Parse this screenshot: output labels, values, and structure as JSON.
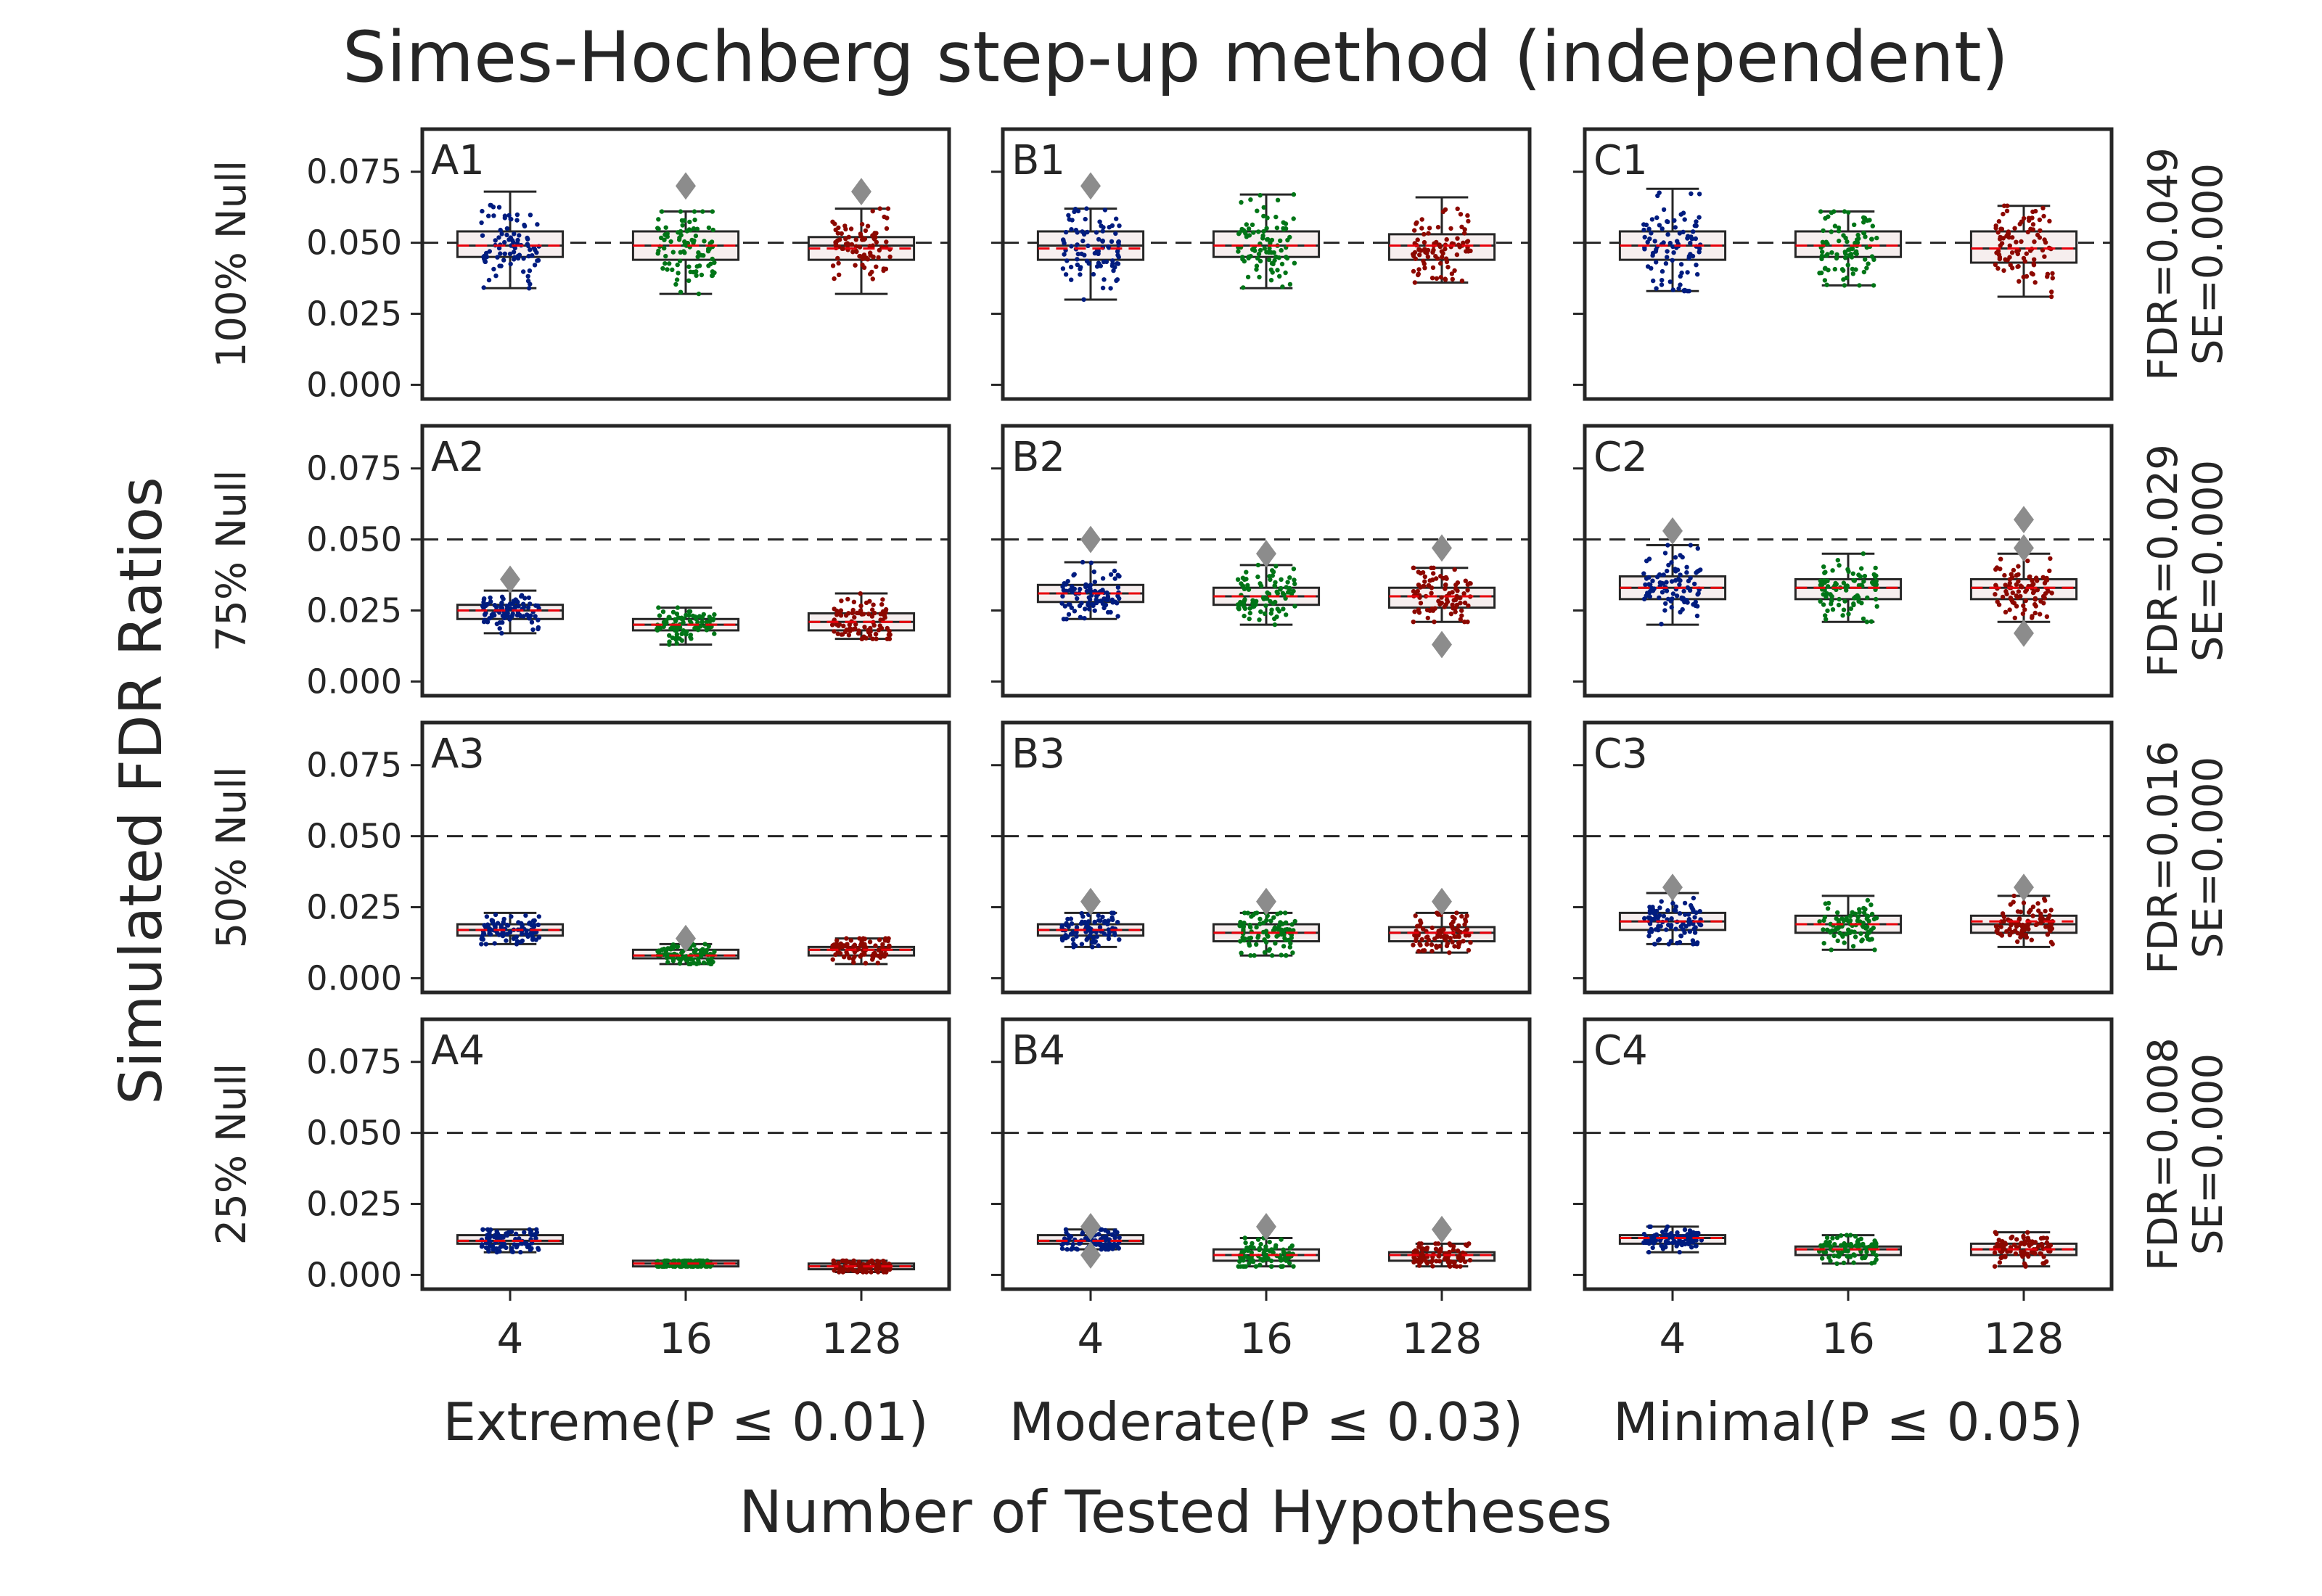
{
  "chart_data": {
    "type": "box",
    "title": "Simes-Hochberg step-up method (independent)",
    "xlabel": "Number of Tested Hypotheses",
    "ylabel": "Simulated FDR Ratios",
    "ylim": [
      -0.005,
      0.09
    ],
    "yticks": [
      "0.000",
      "0.025",
      "0.050",
      "0.075"
    ],
    "ytick_values": [
      0,
      0.025,
      0.05,
      0.075
    ],
    "reference_line": 0.05,
    "categories": [
      "4",
      "16",
      "128"
    ],
    "columns": [
      "Extreme(P ≤ 0.01)",
      "Moderate(P ≤ 0.03)",
      "Minimal(P ≤ 0.05)"
    ],
    "rows": [
      "100% Null",
      "75% Null",
      "50% Null",
      "25% Null"
    ],
    "row_annotations": [
      {
        "fdr": "FDR=0.049",
        "se": "SE=0.000"
      },
      {
        "fdr": "FDR=0.029",
        "se": "SE=0.000"
      },
      {
        "fdr": "FDR=0.016",
        "se": "SE=0.000"
      },
      {
        "fdr": "FDR=0.008",
        "se": "SE=0.000"
      }
    ],
    "colors": {
      "points": [
        "#001c7f",
        "#017517",
        "#8c0800"
      ],
      "mean_line": "#e8000b",
      "box_fill": "#f6eeee",
      "outlier": "#8c8c8c",
      "reference": "#262626",
      "frame": "#262626"
    },
    "grid": false,
    "panels": [
      {
        "label": "A1",
        "row": 0,
        "col": 0,
        "boxes": [
          {
            "category": "4",
            "whislo": 0.034,
            "q1": 0.045,
            "median": 0.049,
            "q3": 0.054,
            "whishi": 0.068,
            "mean": 0.049,
            "outliers": []
          },
          {
            "category": "16",
            "whislo": 0.032,
            "q1": 0.044,
            "median": 0.049,
            "q3": 0.054,
            "whishi": 0.061,
            "mean": 0.049,
            "outliers": [
              0.07
            ]
          },
          {
            "category": "128",
            "whislo": 0.032,
            "q1": 0.044,
            "median": 0.049,
            "q3": 0.052,
            "whishi": 0.062,
            "mean": 0.048,
            "outliers": [
              0.068
            ]
          }
        ]
      },
      {
        "label": "B1",
        "row": 0,
        "col": 1,
        "boxes": [
          {
            "category": "4",
            "whislo": 0.03,
            "q1": 0.044,
            "median": 0.049,
            "q3": 0.054,
            "whishi": 0.062,
            "mean": 0.048,
            "outliers": [
              0.07
            ]
          },
          {
            "category": "16",
            "whislo": 0.034,
            "q1": 0.045,
            "median": 0.049,
            "q3": 0.054,
            "whishi": 0.067,
            "mean": 0.049,
            "outliers": []
          },
          {
            "category": "128",
            "whislo": 0.036,
            "q1": 0.044,
            "median": 0.049,
            "q3": 0.053,
            "whishi": 0.066,
            "mean": 0.049,
            "outliers": []
          }
        ]
      },
      {
        "label": "C1",
        "row": 0,
        "col": 2,
        "boxes": [
          {
            "category": "4",
            "whislo": 0.033,
            "q1": 0.044,
            "median": 0.049,
            "q3": 0.054,
            "whishi": 0.069,
            "mean": 0.049,
            "outliers": []
          },
          {
            "category": "16",
            "whislo": 0.035,
            "q1": 0.045,
            "median": 0.049,
            "q3": 0.054,
            "whishi": 0.061,
            "mean": 0.049,
            "outliers": []
          },
          {
            "category": "128",
            "whislo": 0.031,
            "q1": 0.043,
            "median": 0.048,
            "q3": 0.054,
            "whishi": 0.063,
            "mean": 0.048,
            "outliers": []
          }
        ]
      },
      {
        "label": "A2",
        "row": 1,
        "col": 0,
        "boxes": [
          {
            "category": "4",
            "whislo": 0.017,
            "q1": 0.022,
            "median": 0.025,
            "q3": 0.027,
            "whishi": 0.032,
            "mean": 0.025,
            "outliers": [
              0.036
            ]
          },
          {
            "category": "16",
            "whislo": 0.013,
            "q1": 0.018,
            "median": 0.02,
            "q3": 0.022,
            "whishi": 0.026,
            "mean": 0.02,
            "outliers": []
          },
          {
            "category": "128",
            "whislo": 0.015,
            "q1": 0.018,
            "median": 0.021,
            "q3": 0.024,
            "whishi": 0.031,
            "mean": 0.021,
            "outliers": []
          }
        ]
      },
      {
        "label": "B2",
        "row": 1,
        "col": 1,
        "boxes": [
          {
            "category": "4",
            "whislo": 0.022,
            "q1": 0.028,
            "median": 0.031,
            "q3": 0.034,
            "whishi": 0.042,
            "mean": 0.031,
            "outliers": [
              0.05
            ]
          },
          {
            "category": "16",
            "whislo": 0.02,
            "q1": 0.027,
            "median": 0.03,
            "q3": 0.033,
            "whishi": 0.041,
            "mean": 0.03,
            "outliers": [
              0.045
            ]
          },
          {
            "category": "128",
            "whislo": 0.021,
            "q1": 0.026,
            "median": 0.03,
            "q3": 0.033,
            "whishi": 0.04,
            "mean": 0.03,
            "outliers": [
              0.047,
              0.013
            ]
          }
        ]
      },
      {
        "label": "C2",
        "row": 1,
        "col": 2,
        "boxes": [
          {
            "category": "4",
            "whislo": 0.02,
            "q1": 0.029,
            "median": 0.033,
            "q3": 0.037,
            "whishi": 0.048,
            "mean": 0.033,
            "outliers": [
              0.053
            ]
          },
          {
            "category": "16",
            "whislo": 0.021,
            "q1": 0.029,
            "median": 0.033,
            "q3": 0.036,
            "whishi": 0.045,
            "mean": 0.033,
            "outliers": []
          },
          {
            "category": "128",
            "whislo": 0.021,
            "q1": 0.029,
            "median": 0.033,
            "q3": 0.036,
            "whishi": 0.045,
            "mean": 0.033,
            "outliers": [
              0.057,
              0.047,
              0.017
            ]
          }
        ]
      },
      {
        "label": "A3",
        "row": 2,
        "col": 0,
        "boxes": [
          {
            "category": "4",
            "whislo": 0.012,
            "q1": 0.015,
            "median": 0.017,
            "q3": 0.019,
            "whishi": 0.023,
            "mean": 0.017,
            "outliers": []
          },
          {
            "category": "16",
            "whislo": 0.005,
            "q1": 0.007,
            "median": 0.008,
            "q3": 0.01,
            "whishi": 0.012,
            "mean": 0.008,
            "outliers": [
              0.014
            ]
          },
          {
            "category": "128",
            "whislo": 0.005,
            "q1": 0.008,
            "median": 0.01,
            "q3": 0.011,
            "whishi": 0.014,
            "mean": 0.01,
            "outliers": []
          }
        ]
      },
      {
        "label": "B3",
        "row": 2,
        "col": 1,
        "boxes": [
          {
            "category": "4",
            "whislo": 0.011,
            "q1": 0.015,
            "median": 0.017,
            "q3": 0.019,
            "whishi": 0.023,
            "mean": 0.017,
            "outliers": [
              0.027
            ]
          },
          {
            "category": "16",
            "whislo": 0.008,
            "q1": 0.013,
            "median": 0.016,
            "q3": 0.019,
            "whishi": 0.023,
            "mean": 0.016,
            "outliers": [
              0.027
            ]
          },
          {
            "category": "128",
            "whislo": 0.009,
            "q1": 0.013,
            "median": 0.016,
            "q3": 0.018,
            "whishi": 0.023,
            "mean": 0.016,
            "outliers": [
              0.027
            ]
          }
        ]
      },
      {
        "label": "C3",
        "row": 2,
        "col": 2,
        "boxes": [
          {
            "category": "4",
            "whislo": 0.012,
            "q1": 0.017,
            "median": 0.02,
            "q3": 0.023,
            "whishi": 0.03,
            "mean": 0.02,
            "outliers": [
              0.032
            ]
          },
          {
            "category": "16",
            "whislo": 0.01,
            "q1": 0.016,
            "median": 0.019,
            "q3": 0.022,
            "whishi": 0.029,
            "mean": 0.019,
            "outliers": []
          },
          {
            "category": "128",
            "whislo": 0.011,
            "q1": 0.016,
            "median": 0.019,
            "q3": 0.022,
            "whishi": 0.029,
            "mean": 0.02,
            "outliers": [
              0.032
            ]
          }
        ]
      },
      {
        "label": "A4",
        "row": 3,
        "col": 0,
        "boxes": [
          {
            "category": "4",
            "whislo": 0.008,
            "q1": 0.011,
            "median": 0.012,
            "q3": 0.014,
            "whishi": 0.016,
            "mean": 0.012,
            "outliers": []
          },
          {
            "category": "16",
            "whislo": 0.003,
            "q1": 0.003,
            "median": 0.004,
            "q3": 0.005,
            "whishi": 0.005,
            "mean": 0.004,
            "outliers": []
          },
          {
            "category": "128",
            "whislo": 0.001,
            "q1": 0.002,
            "median": 0.003,
            "q3": 0.004,
            "whishi": 0.005,
            "mean": 0.003,
            "outliers": []
          }
        ]
      },
      {
        "label": "B4",
        "row": 3,
        "col": 1,
        "boxes": [
          {
            "category": "4",
            "whislo": 0.009,
            "q1": 0.011,
            "median": 0.012,
            "q3": 0.014,
            "whishi": 0.016,
            "mean": 0.012,
            "outliers": [
              0.017,
              0.007
            ]
          },
          {
            "category": "16",
            "whislo": 0.003,
            "q1": 0.005,
            "median": 0.007,
            "q3": 0.009,
            "whishi": 0.013,
            "mean": 0.007,
            "outliers": [
              0.017
            ]
          },
          {
            "category": "128",
            "whislo": 0.003,
            "q1": 0.005,
            "median": 0.007,
            "q3": 0.008,
            "whishi": 0.011,
            "mean": 0.007,
            "outliers": [
              0.016
            ]
          }
        ]
      },
      {
        "label": "C4",
        "row": 3,
        "col": 2,
        "boxes": [
          {
            "category": "4",
            "whislo": 0.008,
            "q1": 0.011,
            "median": 0.013,
            "q3": 0.014,
            "whishi": 0.017,
            "mean": 0.013,
            "outliers": []
          },
          {
            "category": "16",
            "whislo": 0.004,
            "q1": 0.007,
            "median": 0.009,
            "q3": 0.01,
            "whishi": 0.014,
            "mean": 0.009,
            "outliers": []
          },
          {
            "category": "128",
            "whislo": 0.003,
            "q1": 0.007,
            "median": 0.009,
            "q3": 0.011,
            "whishi": 0.015,
            "mean": 0.009,
            "outliers": []
          }
        ]
      }
    ]
  }
}
